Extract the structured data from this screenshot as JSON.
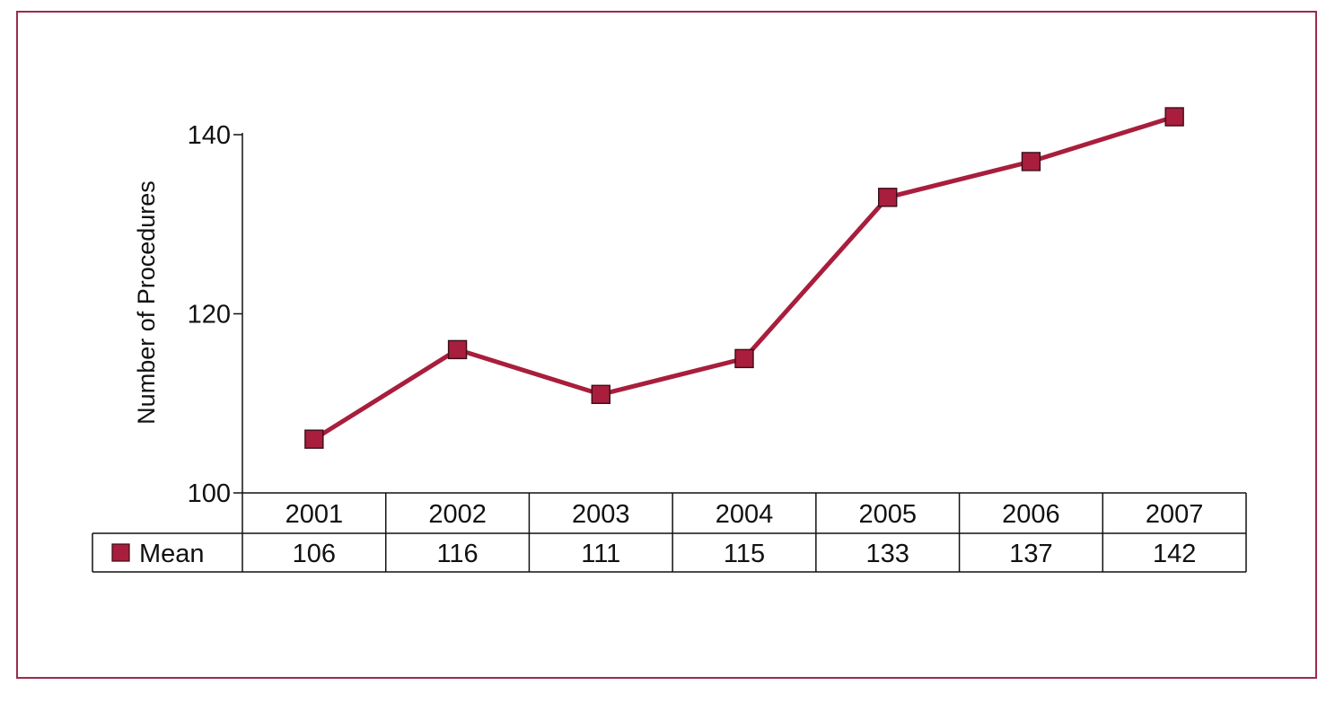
{
  "chart_data": {
    "type": "line",
    "categories": [
      "2001",
      "2002",
      "2003",
      "2004",
      "2005",
      "2006",
      "2007"
    ],
    "series": [
      {
        "name": "Mean",
        "values": [
          106,
          116,
          111,
          115,
          133,
          137,
          142
        ]
      }
    ],
    "ylabel": "Number of Procedures",
    "ylim": [
      100,
      140
    ],
    "yticks": [
      "100",
      "120",
      "140"
    ],
    "data_table": true,
    "grid": false,
    "colors": {
      "series": "#a81e3c",
      "line": "#a81e3c",
      "marker_edge": "#3a0d18",
      "frame": "#9b2c4a"
    }
  }
}
